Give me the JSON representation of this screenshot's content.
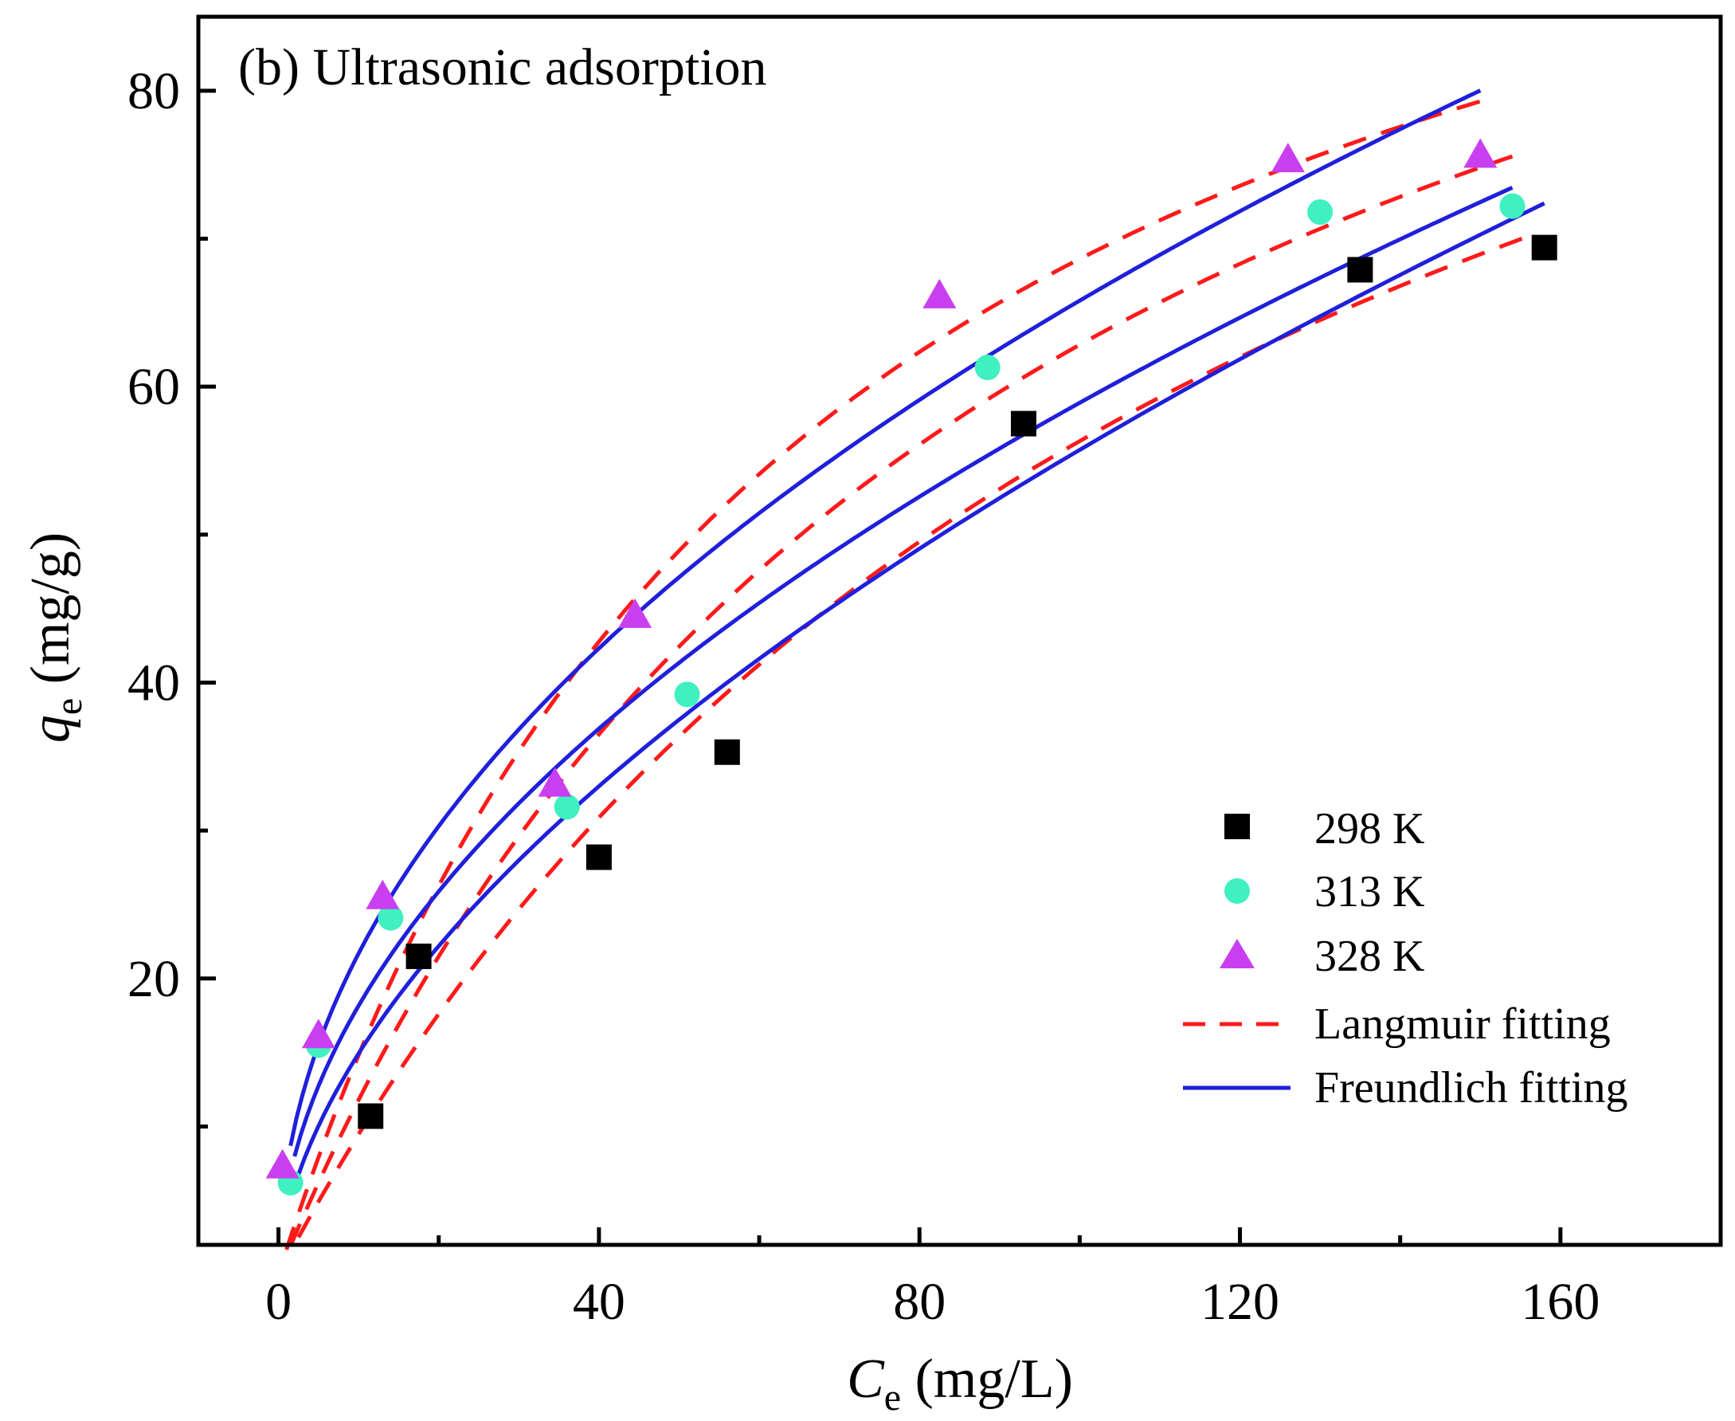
{
  "chart_data": {
    "type": "scatter",
    "title": "(b) Ultrasonic adsorption",
    "xlabel": {
      "symbol": "C",
      "subscript": "e",
      "unit": " (mg/L)"
    },
    "ylabel": {
      "symbol": "q",
      "subscript": "e",
      "unit": " (mg/g)"
    },
    "xlim": [
      -10,
      180
    ],
    "ylim": [
      2,
      85
    ],
    "x_major_ticks": [
      0,
      40,
      80,
      120,
      160
    ],
    "x_minor_ticks": [
      20,
      60,
      100,
      140
    ],
    "y_major_ticks": [
      20,
      40,
      60,
      80
    ],
    "y_minor_ticks": [
      10,
      30,
      50,
      70
    ],
    "grid": false,
    "legend_position": "lower-right",
    "series": [
      {
        "name": "298 K",
        "marker": "square",
        "color": "#000000",
        "x": [
          11.5,
          17.5,
          40,
          56,
          93,
          135,
          158
        ],
        "y": [
          10.7,
          21.5,
          28.2,
          35.3,
          57.5,
          67.9,
          69.4
        ]
      },
      {
        "name": "313 K",
        "marker": "circle",
        "color": "#3ff0c0",
        "x": [
          1.5,
          5,
          14,
          36,
          51,
          88.5,
          130,
          154
        ],
        "y": [
          6.2,
          15.5,
          24.1,
          31.6,
          39.2,
          61.3,
          71.8,
          72.2
        ]
      },
      {
        "name": "328 K",
        "marker": "triangle",
        "color": "#c93ff0",
        "x": [
          0.5,
          5,
          13,
          34.5,
          44.5,
          82.5,
          126,
          150
        ],
        "y": [
          7.3,
          16.1,
          25.5,
          33.1,
          44.5,
          66.1,
          75.3,
          75.6
        ]
      }
    ],
    "fits": [
      {
        "name": "Langmuir fitting",
        "style": "dashed",
        "color": "#ff1a1a",
        "curves": [
          {
            "for": "298 K",
            "qmax": 125,
            "KL": 0.0082,
            "x_range": [
              2.5,
              157
            ]
          },
          {
            "for": "313 K",
            "qmax": 121,
            "KL": 0.0108,
            "x_range": [
              1.5,
              154
            ]
          },
          {
            "for": "328 K",
            "qmax": 115,
            "KL": 0.0148,
            "x_range": [
              1.0,
              150
            ]
          }
        ]
      },
      {
        "name": "Freundlich fitting",
        "style": "solid",
        "color": "#1f1fdc",
        "curves": [
          {
            "for": "298 K",
            "KF": 4.0,
            "n_inv": 0.572,
            "x_range": [
              2.5,
              158
            ]
          },
          {
            "for": "313 K",
            "KF": 5.6,
            "n_inv": 0.511,
            "x_range": [
              2.0,
              154
            ]
          },
          {
            "for": "328 K",
            "KF": 7.15,
            "n_inv": 0.482,
            "x_range": [
              1.5,
              150
            ]
          }
        ]
      }
    ],
    "legend": [
      "298 K",
      "313 K",
      "328 K",
      "Langmuir fitting",
      "Freundlich fitting"
    ]
  }
}
